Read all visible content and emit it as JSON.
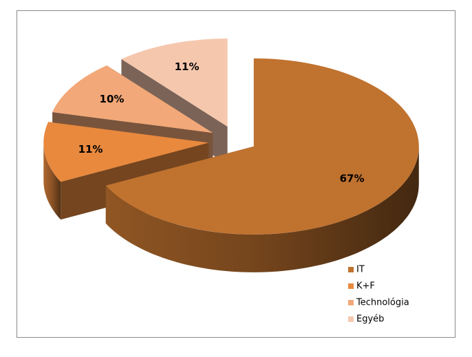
{
  "chart_data": {
    "type": "pie3d",
    "categories": [
      "IT",
      "K+F",
      "Technológia",
      "Egyéb"
    ],
    "values": [
      67,
      11,
      10,
      11
    ],
    "value_labels": [
      "67%",
      "11%",
      "10%",
      "11%"
    ],
    "colors": [
      "#c0722f",
      "#e8893e",
      "#f2a878",
      "#f5c8ae"
    ],
    "legend": "right"
  }
}
